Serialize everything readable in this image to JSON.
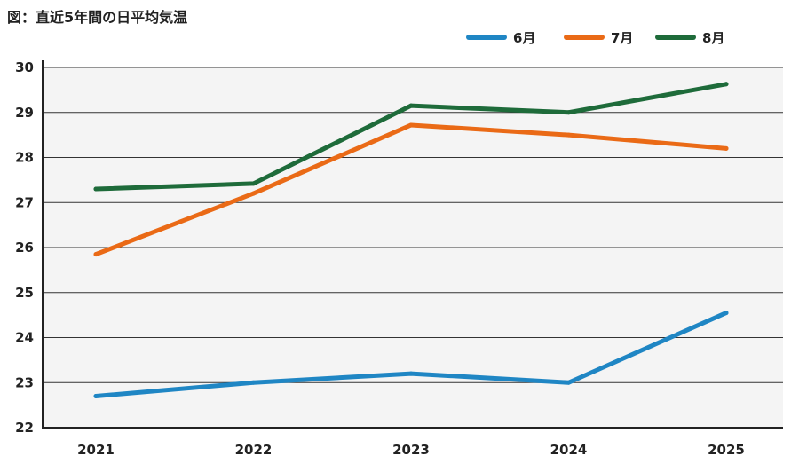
{
  "chart_data": {
    "type": "line",
    "title": "図：直近5年間の日平均気温",
    "xlabel": "",
    "ylabel": "",
    "categories": [
      "2021",
      "2022",
      "2023",
      "2024",
      "2025"
    ],
    "ylim": [
      22,
      30
    ],
    "yticks": [
      22,
      23,
      24,
      25,
      26,
      27,
      28,
      29,
      30
    ],
    "grid": true,
    "legend_position": "top-right",
    "series": [
      {
        "name": "6月",
        "color": "#1f86c4",
        "values": [
          22.7,
          23.0,
          23.2,
          23.0,
          24.55
        ]
      },
      {
        "name": "7月",
        "color": "#ea6a16",
        "values": [
          25.85,
          27.2,
          28.72,
          28.5,
          28.2
        ]
      },
      {
        "name": "8月",
        "color": "#1e6b3a",
        "values": [
          27.3,
          27.42,
          29.15,
          29.0,
          29.63
        ]
      }
    ],
    "colors": {
      "plot_background": "#f4f4f4",
      "grid": "#333333",
      "axis": "#222222"
    }
  }
}
